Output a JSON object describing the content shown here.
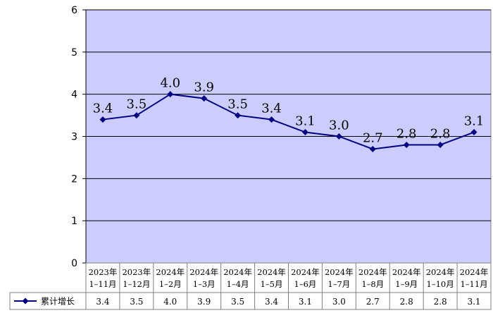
{
  "chart_data": {
    "type": "line",
    "title": "",
    "xlabel": "",
    "ylabel": "",
    "ylim": [
      0,
      6
    ],
    "yticks": [
      0,
      1,
      2,
      3,
      4,
      5,
      6
    ],
    "grid": "horizontal",
    "legend": "data-table-left",
    "categories": [
      [
        "2023年",
        "1–11月"
      ],
      [
        "2023年",
        "1–12月"
      ],
      [
        "2024年",
        "1–2月"
      ],
      [
        "2024年",
        "1–3月"
      ],
      [
        "2024年",
        "1–4月"
      ],
      [
        "2024年",
        "1–5月"
      ],
      [
        "2024年",
        "1–6月"
      ],
      [
        "2024年",
        "1–7月"
      ],
      [
        "2024年",
        "1–8月"
      ],
      [
        "2024年",
        "1–9月"
      ],
      [
        "2024年",
        "1–10月"
      ],
      [
        "2024年",
        "1–11月"
      ]
    ],
    "series": [
      {
        "name": "累计增长",
        "values": [
          3.4,
          3.5,
          4.0,
          3.9,
          3.5,
          3.4,
          3.1,
          3.0,
          2.7,
          2.8,
          2.8,
          3.1
        ],
        "color": "#000080"
      }
    ],
    "plot_background": "#ccccff"
  }
}
